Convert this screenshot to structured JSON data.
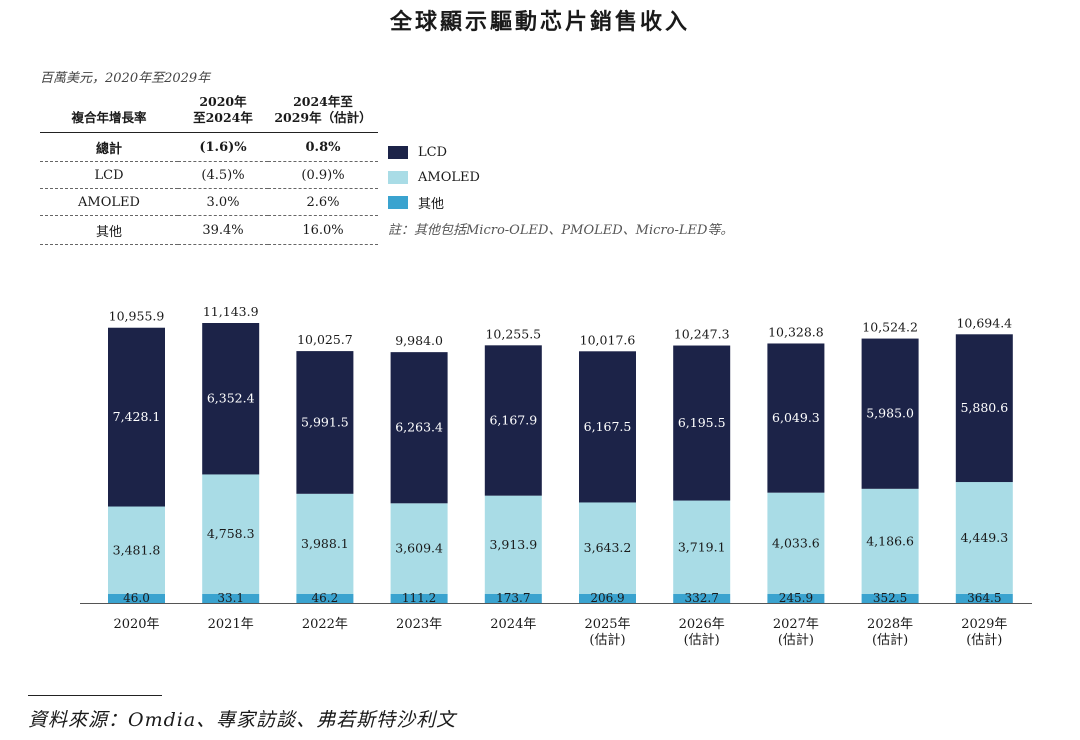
{
  "title": "全球顯示驅動芯片銷售收入",
  "unit_label": "百萬美元，2020年至2029年",
  "cagr_table": {
    "header": [
      "複合年增長率",
      "2020年\n至2024年",
      "2024年至\n2029年（估計）"
    ],
    "rows": [
      {
        "label": "總計",
        "a": "(1.6)%",
        "b": "0.8%",
        "bold": true
      },
      {
        "label": "LCD",
        "a": "(4.5)%",
        "b": "(0.9)%",
        "bold": false
      },
      {
        "label": "AMOLED",
        "a": "3.0%",
        "b": "2.6%",
        "bold": false
      },
      {
        "label": "其他",
        "a": "39.4%",
        "b": "16.0%",
        "bold": false
      }
    ]
  },
  "legend": [
    {
      "label": "LCD",
      "color": "#1c2348"
    },
    {
      "label": "AMOLED",
      "color": "#a9dce6"
    },
    {
      "label": "其他",
      "color": "#3aa3cf"
    }
  ],
  "note": "註：其他包括Micro-OLED、PMOLED、Micro-LED等。",
  "source": "資料來源：Omdia、專家訪談、弗若斯特沙利文",
  "chart_data": {
    "type": "bar",
    "stacked": true,
    "categories": [
      "2020年",
      "2021年",
      "2022年",
      "2023年",
      "2024年",
      "2025年",
      "2026年",
      "2027年",
      "2028年",
      "2029年"
    ],
    "category_sublabels": [
      "",
      "",
      "",
      "",
      "",
      "(估計)",
      "(估計)",
      "(估計)",
      "(估計)",
      "(估計)"
    ],
    "series": [
      {
        "name": "其他",
        "color": "#3aa3cf",
        "values": [
          46.0,
          33.1,
          46.2,
          111.2,
          173.7,
          206.9,
          332.7,
          245.9,
          352.5,
          364.5
        ],
        "labels": [
          "46.0",
          "33.1",
          "46.2",
          "111.2",
          "173.7",
          "206.9",
          "332.7",
          "245.9",
          "352.5",
          "364.5"
        ]
      },
      {
        "name": "AMOLED",
        "color": "#a9dce6",
        "values": [
          3481.8,
          4758.3,
          3988.1,
          3609.4,
          3913.9,
          3643.2,
          3719.1,
          4033.6,
          4186.6,
          4449.3
        ],
        "labels": [
          "3,481.8",
          "4,758.3",
          "3,988.1",
          "3,609.4",
          "3,913.9",
          "3,643.2",
          "3,719.1",
          "4,033.6",
          "4,186.6",
          "4,449.3"
        ]
      },
      {
        "name": "LCD",
        "color": "#1c2348",
        "values": [
          7428.1,
          6352.4,
          5991.5,
          6263.4,
          6167.9,
          6167.5,
          6195.5,
          6049.3,
          5985.0,
          5880.6
        ],
        "labels": [
          "7,428.1",
          "6,352.4",
          "5,991.5",
          "6,263.4",
          "6,167.9",
          "6,167.5",
          "6,195.5",
          "6,049.3",
          "5,985.0",
          "5,880.6"
        ]
      }
    ],
    "totals": [
      10955.9,
      11143.9,
      10025.7,
      9984.0,
      10255.5,
      10017.6,
      10247.3,
      10328.8,
      10524.2,
      10694.4
    ],
    "total_labels": [
      "10,955.9",
      "11,143.9",
      "10,025.7",
      "9,984.0",
      "10,255.5",
      "10,017.6",
      "10,247.3",
      "10,328.8",
      "10,524.2",
      "10,694.4"
    ],
    "ylim": [
      0,
      11143.9
    ]
  }
}
